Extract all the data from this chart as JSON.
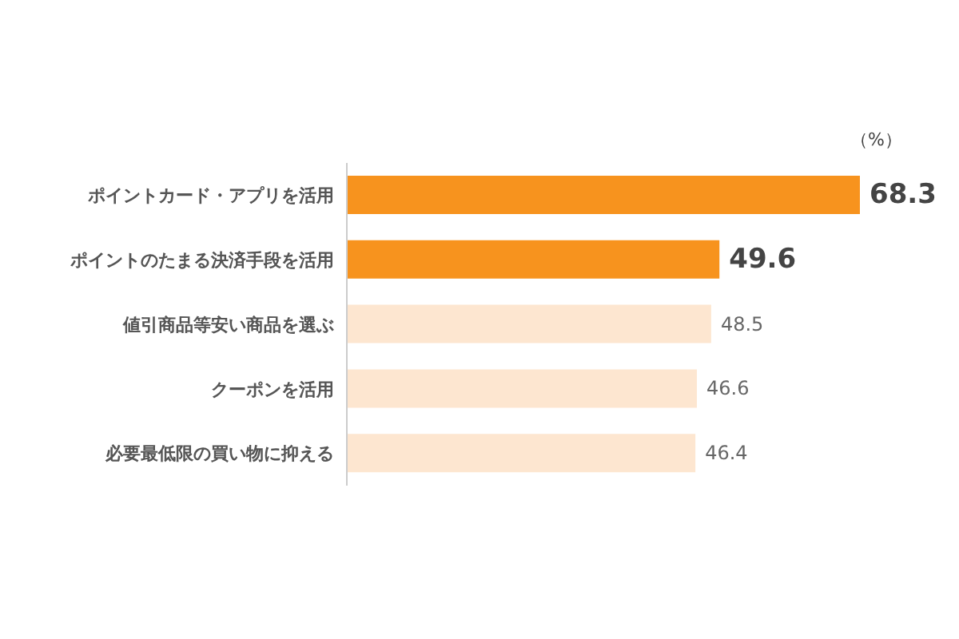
{
  "chart_data": {
    "type": "bar",
    "orientation": "horizontal",
    "categories": [
      "ポイントカード・アプリを活用",
      "ポイントのたまる決済手段を活用",
      "値引商品等安い商品を選ぶ",
      "クーポンを活用",
      "必要最低限の買い物に抑える"
    ],
    "values": [
      68.3,
      49.6,
      48.5,
      46.6,
      46.4
    ],
    "colors": [
      "#f7931e",
      "#f7931e",
      "#fde6d0",
      "#fde6d0",
      "#fde6d0"
    ],
    "data_labels": true,
    "annotations": [
      "（%）"
    ]
  }
}
